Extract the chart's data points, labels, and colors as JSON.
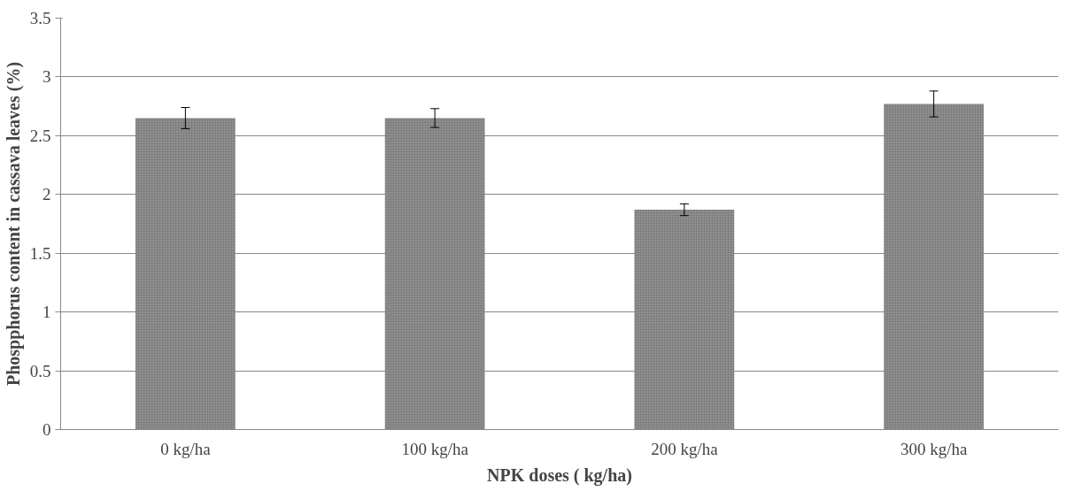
{
  "chart_data": {
    "type": "bar",
    "xlabel": "NPK doses ( kg/ha)",
    "ylabel": "Phospphorus content in cassava leaves (%)",
    "categories": [
      "0 kg/ha",
      "100 kg/ha",
      "200 kg/ha",
      "300 kg/ha"
    ],
    "values": [
      2.65,
      2.65,
      1.87,
      2.77
    ],
    "errors": [
      0.09,
      0.08,
      0.05,
      0.11
    ],
    "color": "#7f7f7f",
    "ylim": [
      0,
      3.5
    ],
    "yticks": [
      0,
      0.5,
      1,
      1.5,
      2,
      2.5,
      3,
      3.5
    ],
    "grid": "y"
  }
}
